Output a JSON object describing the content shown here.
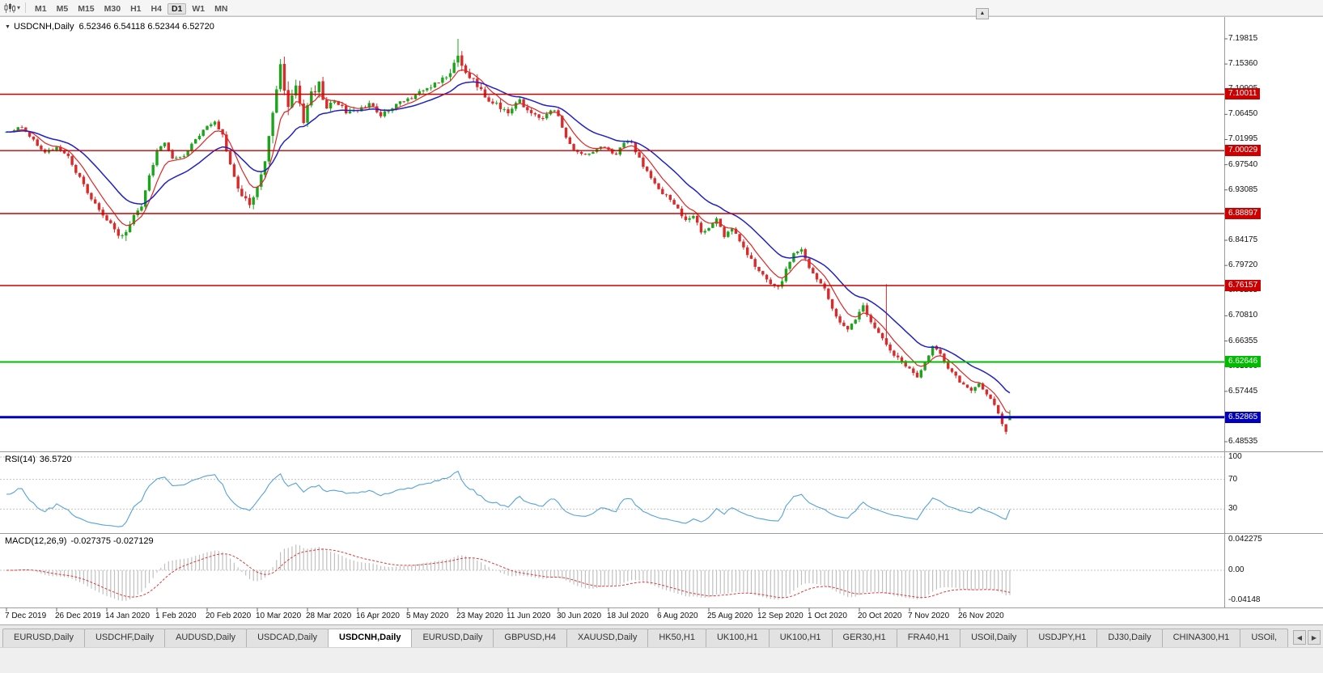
{
  "glyphs": {
    "collapse_arrow": "▼",
    "dropdown_arrow": "▾",
    "overflow_arrow": "▲",
    "tab_prev": "◀",
    "tab_next": "▶"
  },
  "toolbar": {
    "timeframes": [
      "M1",
      "M5",
      "M15",
      "M30",
      "H1",
      "H4",
      "D1",
      "W1",
      "MN"
    ],
    "active_timeframe": "D1",
    "icons": [
      "chart-type-icon",
      "chart-type-dropdown-icon",
      "toolbar-overflow-button"
    ]
  },
  "chart": {
    "title": "USDCNH,Daily",
    "ohlc_text": "6.52346 6.54118 6.52344 6.52720",
    "y_axis_labels": [
      "7.19815",
      "7.15360",
      "7.10905",
      "7.06450",
      "7.01995",
      "6.97540",
      "6.93085",
      "6.88630",
      "6.84175",
      "6.79720",
      "6.75265",
      "6.70810",
      "6.66355",
      "6.61900",
      "6.57445",
      "6.52990",
      "6.48535"
    ],
    "hlines": [
      {
        "price": 7.10011,
        "label": "7.10011",
        "color": "#cc0000",
        "width": 1.4
      },
      {
        "price": 7.00029,
        "label": "7.00029",
        "color": "#cc0000",
        "width": 1.4
      },
      {
        "price": 6.88897,
        "label": "6.88897",
        "color": "#cc0000",
        "width": 1.4
      },
      {
        "price": 6.76157,
        "label": "6.76157",
        "color": "#cc0000",
        "width": 1.4
      },
      {
        "price": 6.62646,
        "label": "6.62646",
        "color": "#00bb00",
        "width": 2
      },
      {
        "price": 6.52865,
        "label": "6.52865",
        "color": "#0000bb",
        "width": 3
      }
    ],
    "date_labels": [
      "7 Dec 2019",
      "26 Dec 2019",
      "14 Jan 2020",
      "1 Feb 2020",
      "20 Feb 2020",
      "10 Mar 2020",
      "28 Mar 2020",
      "16 Apr 2020",
      "5 May 2020",
      "23 May 2020",
      "11 Jun 2020",
      "30 Jun 2020",
      "18 Jul 2020",
      "6 Aug 2020",
      "25 Aug 2020",
      "12 Sep 2020",
      "1 Oct 2020",
      "20 Oct 2020",
      "7 Nov 2020",
      "26 Nov 2020"
    ]
  },
  "rsi": {
    "name": "RSI(14)",
    "value": "36.5720",
    "levels": [
      {
        "label": "100",
        "value": 100
      },
      {
        "label": "70",
        "value": 70
      },
      {
        "label": "30",
        "value": 30
      }
    ],
    "line_color": "#54a2dc"
  },
  "macd": {
    "name": "MACD(12,26,9)",
    "values": "-0.027375 -0.027129",
    "scale": [
      {
        "label": "0.042275",
        "value": 0.042275
      },
      {
        "label": "0.00",
        "value": 0
      },
      {
        "label": "-0.04148",
        "value": -0.04148
      }
    ],
    "hist_color": "#c0c0c0",
    "signal_color": "#e03a3a"
  },
  "tabs": {
    "labels": [
      "EURUSD,Daily",
      "USDCHF,Daily",
      "AUDUSD,Daily",
      "USDCAD,Daily",
      "USDCNH,Daily",
      "EURUSD,Daily",
      "GBPUSD,H4",
      "XAUUSD,Daily",
      "HK50,H1",
      "UK100,H1",
      "UK100,H1",
      "GER30,H1",
      "FRA40,H1",
      "USOil,Daily",
      "USDJPY,H1",
      "DJ30,Daily",
      "CHINA300,H1",
      "USOil,"
    ],
    "active_index": 4
  },
  "chart_data": {
    "type": "candlestick",
    "symbol": "USDCNH",
    "timeframe": "Daily",
    "ohlc": [
      6.52346,
      6.54118,
      6.52344,
      6.5272
    ],
    "x_range": [
      "7 Dec 2019",
      "8 Dec 2020"
    ],
    "y_range": [
      6.4697,
      7.2296
    ],
    "candle_count": 261,
    "candles_per_label": 13,
    "key_levels": [
      7.10011,
      7.00029,
      6.88897,
      6.76157,
      6.62646,
      6.52865
    ],
    "colors": {
      "up": "#1aa51a",
      "down": "#d92b2b",
      "ma_fast": "#e02626",
      "ma_slow": "#2121c8"
    },
    "moving_averages": [
      {
        "period": 7,
        "color_key": "ma_fast"
      },
      {
        "period": 20,
        "color_key": "ma_slow"
      }
    ],
    "indicators": {
      "rsi": {
        "period": 14,
        "current": 36.572,
        "levels": [
          100,
          70,
          30
        ]
      },
      "macd": {
        "fast": 12,
        "slow": 26,
        "signal": 9,
        "current": [
          -0.027375,
          -0.027129
        ],
        "scale_max": 0.042275,
        "scale_min": -0.04148
      }
    },
    "close_anchors": [
      [
        0,
        7.033
      ],
      [
        4,
        7.042
      ],
      [
        7,
        7.018
      ],
      [
        10,
        6.996
      ],
      [
        13,
        7.006
      ],
      [
        16,
        6.988
      ],
      [
        19,
        6.952
      ],
      [
        22,
        6.912
      ],
      [
        25,
        6.888
      ],
      [
        27,
        6.868
      ],
      [
        29,
        6.849
      ],
      [
        31,
        6.853
      ],
      [
        33,
        6.885
      ],
      [
        35,
        6.904
      ],
      [
        37,
        6.955
      ],
      [
        39,
        6.998
      ],
      [
        41,
        7.012
      ],
      [
        43,
        6.986
      ],
      [
        46,
        6.992
      ],
      [
        49,
        7.022
      ],
      [
        52,
        7.042
      ],
      [
        54,
        7.052
      ],
      [
        56,
        7.028
      ],
      [
        59,
        6.952
      ],
      [
        61,
        6.915
      ],
      [
        63,
        6.908
      ],
      [
        65,
        6.932
      ],
      [
        67,
        6.988
      ],
      [
        69,
        7.062
      ],
      [
        71,
        7.148
      ],
      [
        73,
        7.082
      ],
      [
        75,
        7.112
      ],
      [
        77,
        7.052
      ],
      [
        79,
        7.098
      ],
      [
        81,
        7.118
      ],
      [
        83,
        7.072
      ],
      [
        85,
        7.092
      ],
      [
        88,
        7.068
      ],
      [
        91,
        7.072
      ],
      [
        94,
        7.082
      ],
      [
        97,
        7.062
      ],
      [
        100,
        7.078
      ],
      [
        103,
        7.088
      ],
      [
        106,
        7.098
      ],
      [
        109,
        7.112
      ],
      [
        112,
        7.122
      ],
      [
        115,
        7.134
      ],
      [
        117,
        7.168
      ],
      [
        118,
        7.152
      ],
      [
        120,
        7.132
      ],
      [
        122,
        7.118
      ],
      [
        124,
        7.096
      ],
      [
        127,
        7.082
      ],
      [
        130,
        7.068
      ],
      [
        133,
        7.088
      ],
      [
        136,
        7.064
      ],
      [
        139,
        7.058
      ],
      [
        141,
        7.074
      ],
      [
        143,
        7.064
      ],
      [
        145,
        7.022
      ],
      [
        147,
        7.002
      ],
      [
        149,
        6.994
      ],
      [
        152,
        6.998
      ],
      [
        154,
        7.008
      ],
      [
        156,
        7.004
      ],
      [
        158,
        6.991
      ],
      [
        160,
        7.016
      ],
      [
        162,
        7.012
      ],
      [
        164,
        6.986
      ],
      [
        166,
        6.962
      ],
      [
        168,
        6.944
      ],
      [
        170,
        6.926
      ],
      [
        172,
        6.916
      ],
      [
        174,
        6.898
      ],
      [
        176,
        6.876
      ],
      [
        178,
        6.882
      ],
      [
        180,
        6.858
      ],
      [
        182,
        6.862
      ],
      [
        184,
        6.878
      ],
      [
        186,
        6.846
      ],
      [
        188,
        6.862
      ],
      [
        190,
        6.838
      ],
      [
        192,
        6.818
      ],
      [
        194,
        6.798
      ],
      [
        196,
        6.782
      ],
      [
        198,
        6.762
      ],
      [
        200,
        6.756
      ],
      [
        202,
        6.788
      ],
      [
        204,
        6.822
      ],
      [
        206,
        6.824
      ],
      [
        208,
        6.792
      ],
      [
        210,
        6.774
      ],
      [
        212,
        6.754
      ],
      [
        214,
        6.722
      ],
      [
        216,
        6.697
      ],
      [
        218,
        6.682
      ],
      [
        220,
        6.702
      ],
      [
        222,
        6.724
      ],
      [
        224,
        6.7
      ],
      [
        226,
        6.678
      ],
      [
        228,
        6.654
      ],
      [
        230,
        6.64
      ],
      [
        232,
        6.626
      ],
      [
        234,
        6.614
      ],
      [
        236,
        6.6
      ],
      [
        238,
        6.626
      ],
      [
        240,
        6.654
      ],
      [
        242,
        6.64
      ],
      [
        244,
        6.616
      ],
      [
        246,
        6.6
      ],
      [
        248,
        6.584
      ],
      [
        250,
        6.576
      ],
      [
        252,
        6.586
      ],
      [
        254,
        6.57
      ],
      [
        256,
        6.552
      ],
      [
        258,
        6.518
      ],
      [
        259,
        6.504
      ],
      [
        260,
        6.5272
      ]
    ],
    "vol_anchors": [
      [
        0,
        0.0045
      ],
      [
        20,
        0.007
      ],
      [
        28,
        0.01
      ],
      [
        36,
        0.008
      ],
      [
        45,
        0.005
      ],
      [
        55,
        0.007
      ],
      [
        62,
        0.012
      ],
      [
        67,
        0.018
      ],
      [
        73,
        0.022
      ],
      [
        80,
        0.016
      ],
      [
        88,
        0.01
      ],
      [
        100,
        0.007
      ],
      [
        110,
        0.008
      ],
      [
        116,
        0.012
      ],
      [
        119,
        0.015
      ],
      [
        126,
        0.009
      ],
      [
        140,
        0.0065
      ],
      [
        152,
        0.005
      ],
      [
        165,
        0.006
      ],
      [
        178,
        0.008
      ],
      [
        190,
        0.0075
      ],
      [
        203,
        0.008
      ],
      [
        214,
        0.007
      ],
      [
        224,
        0.008
      ],
      [
        232,
        0.0075
      ],
      [
        242,
        0.007
      ],
      [
        252,
        0.0065
      ],
      [
        260,
        0.007
      ]
    ],
    "spikes": [
      {
        "i": 117,
        "high": 7.1981
      },
      {
        "i": 228,
        "high": 6.7641
      },
      {
        "i": 31,
        "low": 6.8405
      },
      {
        "i": 259,
        "low": 6.4985
      }
    ]
  }
}
